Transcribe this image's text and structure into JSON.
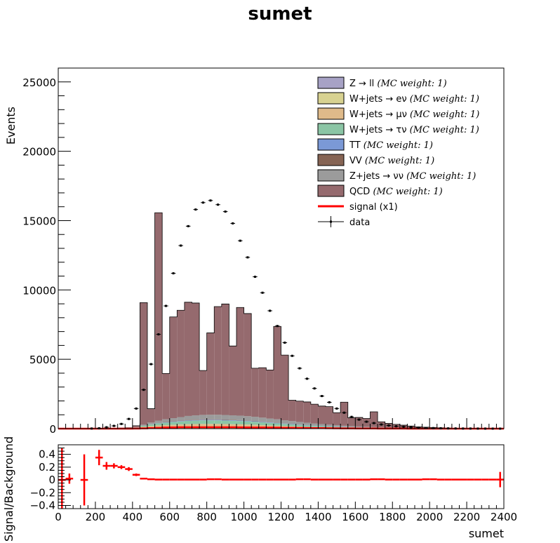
{
  "chart_data": [
    {
      "type": "histogram",
      "title": "sumet",
      "ylabel": "Events",
      "xlim": [
        0,
        2400
      ],
      "ylim": [
        0,
        26000
      ],
      "x_ticks": [
        0,
        200,
        400,
        600,
        800,
        1000,
        1200,
        1400,
        1600,
        1800,
        2000,
        2200,
        2400
      ],
      "y_ticks": [
        0,
        5000,
        10000,
        15000,
        20000,
        25000
      ],
      "bin_width": 40,
      "bin_lo": [
        0,
        40,
        80,
        120,
        160,
        200,
        240,
        280,
        320,
        360,
        400,
        440,
        480,
        520,
        560,
        600,
        640,
        680,
        720,
        760,
        800,
        840,
        880,
        920,
        960,
        1000,
        1040,
        1080,
        1120,
        1160,
        1200,
        1240,
        1280,
        1320,
        1360,
        1400,
        1440,
        1480,
        1520,
        1560,
        1600,
        1640,
        1680,
        1720,
        1760,
        1800,
        1840,
        1880,
        1920,
        1960,
        2000,
        2040,
        2080,
        2120,
        2160,
        2200,
        2240,
        2280,
        2320,
        2360
      ],
      "legend": {
        "position": "top-right",
        "entries": [
          {
            "label": "Z → ll",
            "weight_note": "(MC weight: 1)",
            "color": "#a7a2c5",
            "kind": "box"
          },
          {
            "label": "W+jets → eν",
            "weight_note": "(MC weight: 1)",
            "color": "#d8d291",
            "kind": "box"
          },
          {
            "label": "W+jets → μν",
            "weight_note": "(MC weight: 1)",
            "color": "#dfba8a",
            "kind": "box"
          },
          {
            "label": "W+jets → τν",
            "weight_note": "(MC weight: 1)",
            "color": "#8bc5a5",
            "kind": "box"
          },
          {
            "label": "TT",
            "weight_note": "(MC weight: 1)",
            "color": "#7b99d6",
            "kind": "box"
          },
          {
            "label": "VV",
            "weight_note": "(MC weight: 1)",
            "color": "#866454",
            "kind": "box"
          },
          {
            "label": "Z+jets → νν",
            "weight_note": "(MC weight: 1)",
            "color": "#9b9b9b",
            "kind": "box"
          },
          {
            "label": "QCD",
            "weight_note": "(MC weight: 1)",
            "color": "#956a6e",
            "kind": "box"
          },
          {
            "label": "signal (x1)",
            "weight_note": "",
            "color": "#ff0000",
            "kind": "line"
          },
          {
            "label": "data",
            "weight_note": "",
            "color": "#000000",
            "kind": "marker"
          }
        ]
      },
      "series": [
        {
          "name": "Z → ll",
          "color": "#a7a2c5",
          "values": [
            0,
            0,
            0,
            0,
            0,
            0,
            0,
            0,
            0,
            0,
            0,
            5,
            8,
            10,
            12,
            14,
            15,
            16,
            17,
            17,
            17,
            17,
            17,
            16,
            15,
            14,
            13,
            12,
            11,
            10,
            9,
            8,
            7,
            6,
            5,
            5,
            4,
            4,
            3,
            3,
            3,
            2,
            2,
            2,
            2,
            1,
            1,
            1,
            1,
            1,
            1,
            1,
            1,
            0,
            0,
            0,
            0,
            0,
            0,
            0
          ]
        },
        {
          "name": "W+jets → eν",
          "color": "#d8d291",
          "values": [
            0,
            0,
            0,
            0,
            0,
            0,
            0,
            5,
            10,
            15,
            25,
            60,
            90,
            110,
            120,
            130,
            140,
            150,
            155,
            160,
            160,
            160,
            155,
            150,
            145,
            140,
            130,
            120,
            110,
            100,
            90,
            80,
            70,
            60,
            50,
            45,
            40,
            35,
            30,
            25,
            20,
            18,
            15,
            12,
            10,
            8,
            7,
            6,
            5,
            4,
            3,
            3,
            2,
            2,
            2,
            1,
            1,
            1,
            1,
            1
          ]
        },
        {
          "name": "W+jets → μν",
          "color": "#dfba8a",
          "values": [
            0,
            0,
            0,
            0,
            0,
            0,
            0,
            5,
            10,
            15,
            25,
            60,
            90,
            110,
            120,
            130,
            140,
            150,
            155,
            160,
            160,
            160,
            155,
            150,
            145,
            140,
            130,
            120,
            110,
            100,
            90,
            80,
            70,
            60,
            50,
            45,
            40,
            35,
            30,
            25,
            20,
            18,
            15,
            12,
            10,
            8,
            7,
            6,
            5,
            4,
            3,
            3,
            2,
            2,
            2,
            1,
            1,
            1,
            1,
            1
          ]
        },
        {
          "name": "W+jets → τν",
          "color": "#8bc5a5",
          "values": [
            0,
            0,
            0,
            0,
            0,
            0,
            0,
            5,
            10,
            15,
            30,
            80,
            120,
            150,
            180,
            200,
            220,
            240,
            250,
            260,
            260,
            260,
            255,
            250,
            240,
            230,
            220,
            200,
            185,
            170,
            150,
            135,
            120,
            105,
            90,
            80,
            70,
            60,
            50,
            45,
            40,
            35,
            30,
            25,
            20,
            15,
            12,
            10,
            8,
            6,
            5,
            4,
            3,
            3,
            2,
            2,
            1,
            1,
            1,
            1
          ]
        },
        {
          "name": "TT",
          "color": "#7b99d6",
          "values": [
            0,
            0,
            0,
            0,
            0,
            0,
            0,
            0,
            0,
            0,
            5,
            10,
            15,
            20,
            25,
            30,
            35,
            40,
            40,
            45,
            45,
            45,
            45,
            45,
            45,
            40,
            40,
            40,
            35,
            35,
            30,
            30,
            25,
            25,
            20,
            20,
            15,
            15,
            12,
            10,
            10,
            8,
            6,
            5,
            4,
            3,
            3,
            2,
            2,
            2,
            1,
            1,
            1,
            1,
            1,
            0,
            0,
            0,
            0,
            0
          ]
        },
        {
          "name": "VV",
          "color": "#866454",
          "values": [
            0,
            0,
            0,
            0,
            0,
            0,
            0,
            0,
            0,
            0,
            5,
            10,
            15,
            18,
            20,
            22,
            25,
            28,
            30,
            30,
            30,
            30,
            30,
            28,
            28,
            25,
            25,
            22,
            20,
            18,
            16,
            14,
            12,
            10,
            9,
            8,
            7,
            6,
            5,
            4,
            4,
            3,
            3,
            2,
            2,
            2,
            1,
            1,
            1,
            1,
            1,
            1,
            0,
            0,
            0,
            0,
            0,
            0,
            0,
            0
          ]
        },
        {
          "name": "Z+jets → νν",
          "color": "#9b9b9b",
          "values": [
            0,
            0,
            0,
            0,
            0,
            0,
            0,
            5,
            10,
            15,
            20,
            60,
            100,
            150,
            200,
            230,
            260,
            290,
            310,
            320,
            330,
            330,
            330,
            320,
            320,
            310,
            300,
            280,
            260,
            240,
            220,
            200,
            180,
            160,
            140,
            125,
            110,
            95,
            80,
            70,
            60,
            50,
            42,
            35,
            28,
            22,
            18,
            14,
            11,
            9,
            7,
            6,
            5,
            4,
            3,
            3,
            2,
            2,
            2,
            2
          ]
        },
        {
          "name": "QCD",
          "color": "#956a6e",
          "values": [
            0,
            0,
            0,
            0,
            0,
            0,
            0,
            0,
            0,
            0,
            100,
            8800,
            1000,
            15000,
            3300,
            7300,
            7700,
            8200,
            8100,
            3200,
            5900,
            7800,
            8000,
            5000,
            7800,
            7400,
            3500,
            3600,
            3500,
            6700,
            4700,
            1500,
            1500,
            1500,
            1400,
            1300,
            1300,
            900,
            1700,
            600,
            650,
            600,
            1100,
            400,
            300,
            250,
            200,
            150,
            100,
            80,
            60,
            40,
            30,
            20,
            15,
            10,
            5,
            5,
            0,
            0
          ]
        },
        {
          "name": "data",
          "color": "#000000",
          "values": [
            0,
            0,
            0,
            0,
            10,
            30,
            100,
            200,
            340,
            700,
            1450,
            2800,
            4650,
            6800,
            8850,
            11200,
            13200,
            14600,
            15800,
            16300,
            16450,
            16150,
            15650,
            14800,
            13550,
            12350,
            10950,
            9800,
            8500,
            7400,
            6200,
            5250,
            4350,
            3600,
            2900,
            2350,
            1900,
            1450,
            1150,
            850,
            650,
            500,
            400,
            300,
            230,
            170,
            130,
            100,
            70,
            50,
            40,
            30,
            20,
            15,
            10,
            8,
            6,
            4,
            3,
            2
          ]
        },
        {
          "name": "signal (x1)",
          "color": "#ff0000",
          "values": [
            0,
            0,
            0,
            0,
            0,
            0,
            0,
            0,
            0,
            0,
            5,
            20,
            40,
            60,
            80,
            90,
            100,
            100,
            100,
            100,
            100,
            100,
            100,
            100,
            95,
            90,
            85,
            80,
            75,
            70,
            60,
            55,
            50,
            45,
            40,
            35,
            30,
            25,
            20,
            18,
            15,
            12,
            10,
            8,
            6,
            5,
            4,
            3,
            2,
            2,
            1,
            1,
            1,
            1,
            0,
            0,
            0,
            0,
            0,
            0
          ]
        }
      ]
    },
    {
      "type": "scatter",
      "xlabel": "sumet",
      "ylabel": "Signal/Background",
      "xlim": [
        0,
        2400
      ],
      "ylim": [
        -0.45,
        0.55
      ],
      "x_ticks": [
        0,
        200,
        400,
        600,
        800,
        1000,
        1200,
        1400,
        1600,
        1800,
        2000,
        2200,
        2400
      ],
      "x_tick_labels": [
        "0",
        "200",
        "400",
        "600",
        "800",
        "1000",
        "1200",
        "1400",
        "1600",
        "1800",
        "2000",
        "2200",
        "2400"
      ],
      "y_ticks": [
        -0.4,
        -0.2,
        0,
        0.2,
        0.4
      ],
      "y_tick_labels": [
        "−0.4",
        "−0.2",
        "0",
        "0.2",
        "0.4"
      ],
      "series": [
        {
          "name": "signal/background",
          "color": "#ff0000",
          "x": [
            20,
            60,
            100,
            140,
            180,
            220,
            260,
            300,
            340,
            380,
            420,
            460,
            500,
            540,
            580,
            620,
            660,
            700,
            740,
            780,
            820,
            860,
            900,
            940,
            980,
            1020,
            1060,
            1100,
            1140,
            1180,
            1220,
            1260,
            1300,
            1340,
            1380,
            1420,
            1460,
            1500,
            1540,
            1580,
            1620,
            1660,
            1700,
            1740,
            1780,
            1820,
            1860,
            1900,
            1940,
            1980,
            2020,
            2060,
            2100,
            2140,
            2180,
            2220,
            2260,
            2300,
            2340,
            2380
          ],
          "values": [
            0,
            0.02,
            0,
            0,
            0,
            0.35,
            0.22,
            0.22,
            0.2,
            0.17,
            0.08,
            0.02,
            0.01,
            0.005,
            0.005,
            0.005,
            0.005,
            0.005,
            0.005,
            0.005,
            0.01,
            0.01,
            0.005,
            0.005,
            0.005,
            0.005,
            0.005,
            0.005,
            0.005,
            0.005,
            0.005,
            0.005,
            0.01,
            0.01,
            0.005,
            0.005,
            0.005,
            0.005,
            0.005,
            0.005,
            0.005,
            0.005,
            0.01,
            0.01,
            0.005,
            0.005,
            0.005,
            0.005,
            0.005,
            0.01,
            0.01,
            0.005,
            0.005,
            0.005,
            0.005,
            0.005,
            0.005,
            0.005,
            0.005,
            0.005
          ],
          "errors": [
            0.5,
            0.08,
            0,
            0.4,
            0,
            0.12,
            0.06,
            0.04,
            0.03,
            0.03,
            0.02,
            0.01,
            0.005,
            0.005,
            0.005,
            0.005,
            0.005,
            0.005,
            0.005,
            0.005,
            0.005,
            0.005,
            0.005,
            0.005,
            0.005,
            0.005,
            0.005,
            0.005,
            0.005,
            0.005,
            0.005,
            0.005,
            0.005,
            0.005,
            0.005,
            0.005,
            0.005,
            0.005,
            0.005,
            0.005,
            0.005,
            0.005,
            0.005,
            0.005,
            0.005,
            0.005,
            0.005,
            0.005,
            0.005,
            0.005,
            0.005,
            0.005,
            0.005,
            0.005,
            0.005,
            0.005,
            0.005,
            0.005,
            0.005,
            0.12
          ],
          "x_error": 20
        }
      ]
    }
  ]
}
